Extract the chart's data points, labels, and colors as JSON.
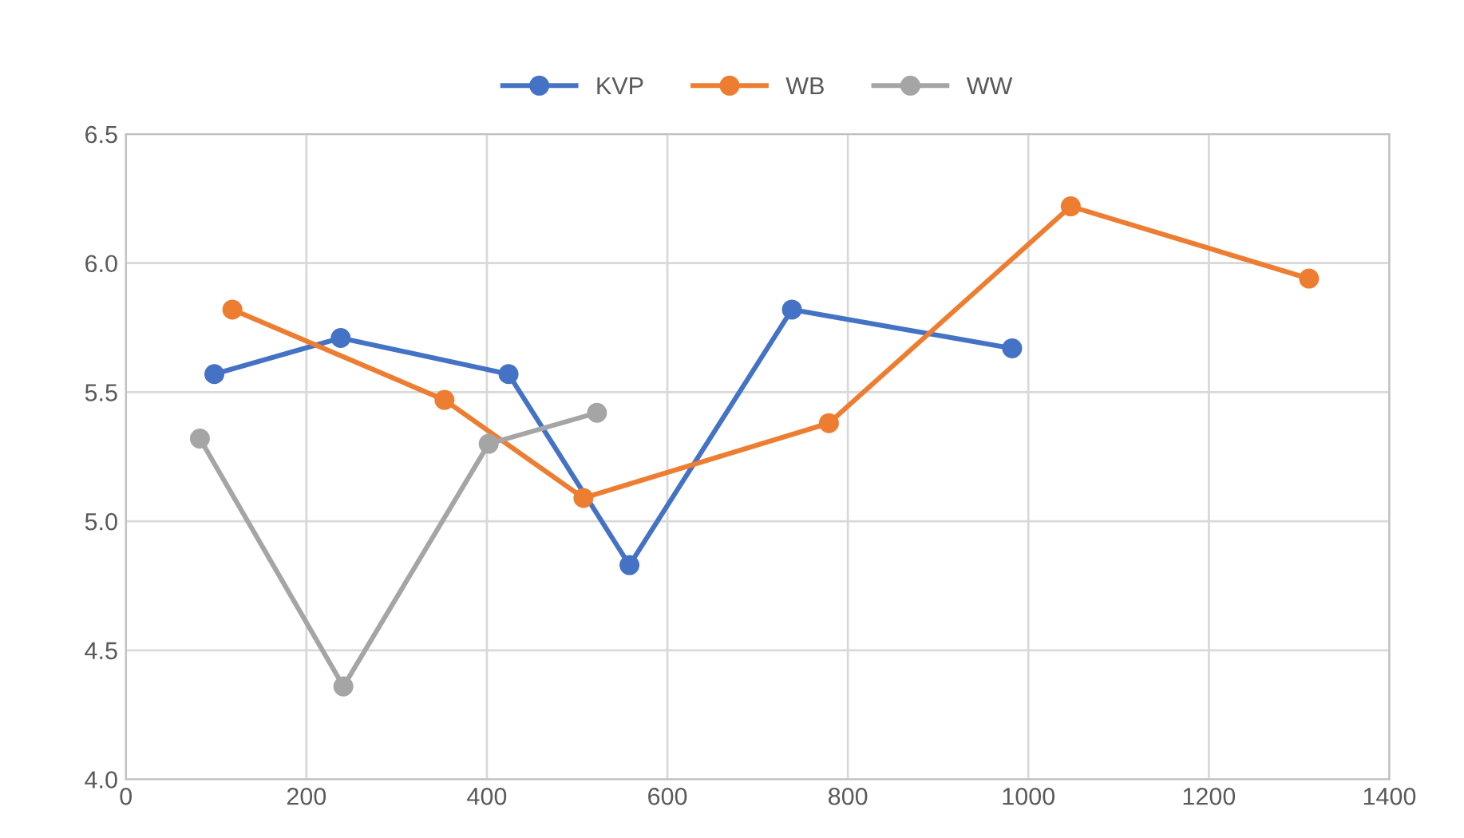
{
  "chart_data": {
    "type": "line",
    "series": [
      {
        "name": "KVP",
        "color": "#4472c4",
        "x": [
          98,
          238,
          424,
          558,
          738,
          982
        ],
        "values": [
          5.57,
          5.71,
          5.57,
          4.83,
          5.82,
          5.67
        ]
      },
      {
        "name": "WB",
        "color": "#ed7d31",
        "x": [
          118,
          353,
          507,
          779,
          1047,
          1311
        ],
        "values": [
          5.82,
          5.47,
          5.09,
          5.38,
          6.22,
          5.94
        ]
      },
      {
        "name": "WW",
        "color": "#a5a5a5",
        "x": [
          82,
          241,
          402,
          522
        ],
        "values": [
          5.32,
          4.36,
          5.3,
          5.42
        ]
      }
    ],
    "xlim": [
      0,
      1400
    ],
    "xticks": [
      0,
      200,
      400,
      600,
      800,
      1000,
      1200,
      1400
    ],
    "ylim": [
      4.0,
      6.5
    ],
    "yticks": [
      {
        "value": 4.0,
        "label": "4.0"
      },
      {
        "value": 4.5,
        "label": "4.5"
      },
      {
        "value": 5.0,
        "label": "5.0"
      },
      {
        "value": 5.5,
        "label": "5.5"
      },
      {
        "value": 6.0,
        "label": "6.0"
      },
      {
        "value": 6.5,
        "label": "6.5"
      }
    ],
    "grid": true,
    "legend": "top",
    "marker": "circle",
    "line_style": "solid"
  }
}
